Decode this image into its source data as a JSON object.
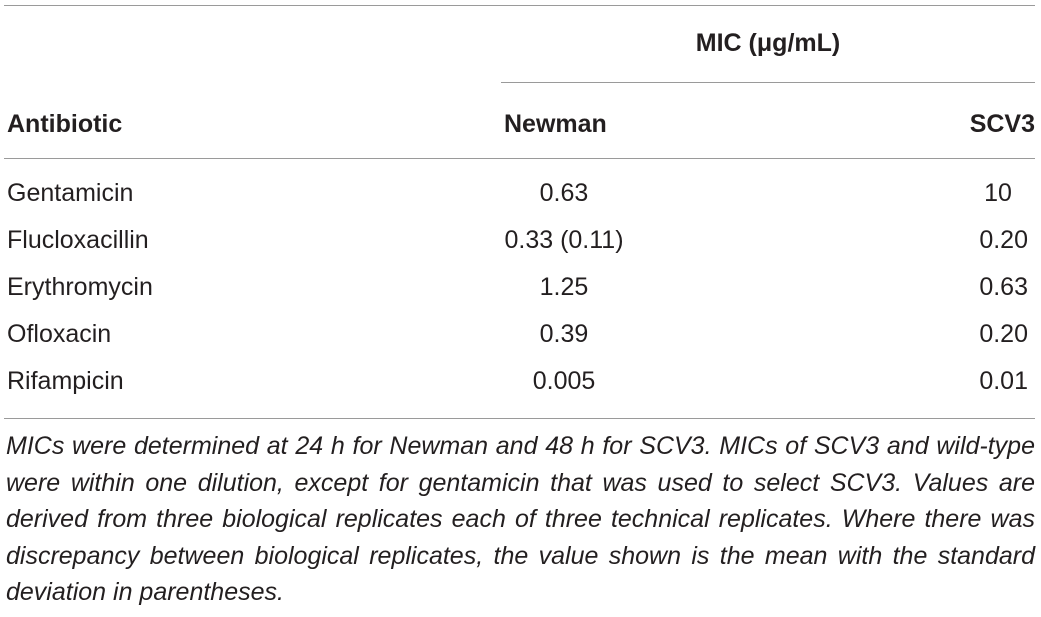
{
  "table": {
    "group_header": "MIC (μg/mL)",
    "columns": {
      "antibiotic": "Antibiotic",
      "newman": "Newman",
      "scv3": "SCV3"
    },
    "rows": [
      {
        "antibiotic": "Gentamicin",
        "newman": "0.63",
        "scv3": "10"
      },
      {
        "antibiotic": "Flucloxacillin",
        "newman": "0.33 (0.11)",
        "scv3": "0.20"
      },
      {
        "antibiotic": "Erythromycin",
        "newman": "1.25",
        "scv3": "0.63"
      },
      {
        "antibiotic": "Ofloxacin",
        "newman": "0.39",
        "scv3": "0.20"
      },
      {
        "antibiotic": "Rifampicin",
        "newman": "0.005",
        "scv3": "0.01"
      }
    ]
  },
  "footnote": "MICs were determined at 24 h for Newman and 48 h for SCV3. MICs of SCV3 and wild-type were within one dilution, except for gentamicin that was used to select SCV3. Values are derived from three biological replicates each of three technical replicates. Where there was discrepancy between biological replicates, the value shown is the mean with the standard deviation in parentheses."
}
